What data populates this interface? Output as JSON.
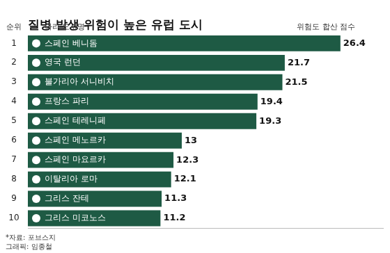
{
  "chart_data": {
    "type": "bar",
    "title": "질병 발생 위험이 높은 유럽 도시",
    "orientation": "horizontal",
    "rank_header": "순위",
    "category_header": "나라 도시명",
    "value_header": "위험도 합산 점수",
    "ranks": [
      1,
      2,
      3,
      4,
      5,
      6,
      7,
      8,
      9,
      10
    ],
    "categories": [
      "스페인 베니돔",
      "영국 런던",
      "불가리아 서니비치",
      "프랑스 파리",
      "스페인 테레니페",
      "스페인 메노르카",
      "스페인 마요르카",
      "이탈리아 로마",
      "그리스 잔테",
      "그리스 미코노스"
    ],
    "values": [
      26.4,
      21.7,
      21.5,
      19.4,
      19.3,
      13,
      12.3,
      12.1,
      11.3,
      11.2
    ],
    "color": "#1e5a44",
    "xlim": [
      0,
      30
    ],
    "grid": false,
    "data_labels": true,
    "tick_labels": false,
    "source": "*자료: 포브스지",
    "credit": "그래픽: 임종철"
  }
}
